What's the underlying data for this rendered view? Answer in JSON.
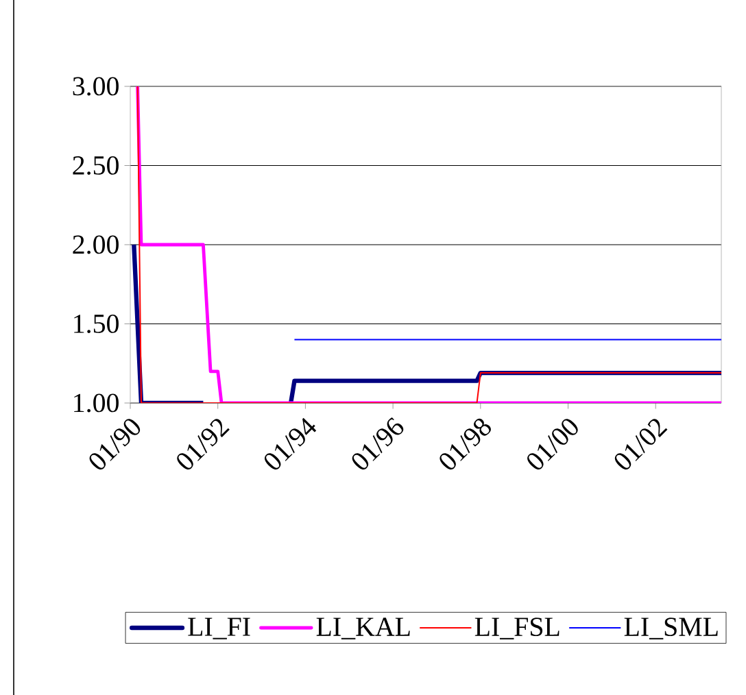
{
  "chart_data": {
    "type": "line",
    "xlim": [
      "1990-01",
      "2003-07"
    ],
    "xticks": [
      {
        "value": "1990-01",
        "label": "01/90"
      },
      {
        "value": "1992-01",
        "label": "01/92"
      },
      {
        "value": "1994-01",
        "label": "01/94"
      },
      {
        "value": "1996-01",
        "label": "01/96"
      },
      {
        "value": "1998-01",
        "label": "01/98"
      },
      {
        "value": "2000-01",
        "label": "01/00"
      },
      {
        "value": "2002-01",
        "label": "01/02"
      }
    ],
    "ylim": [
      1,
      3
    ],
    "yticks": [
      {
        "value": 1,
        "label": "1.00"
      },
      {
        "value": 1.5,
        "label": "1.50"
      },
      {
        "value": 2,
        "label": "2.00"
      },
      {
        "value": 2.5,
        "label": "2.50"
      },
      {
        "value": 3,
        "label": "3.00"
      }
    ],
    "grid": "y",
    "legend": "bottom",
    "marker": "none",
    "line_style": "solid",
    "series": [
      {
        "name": "LI_FI",
        "color": "#000080",
        "x": [
          "1990-02",
          "1990-04",
          "1991-09",
          "1992-06",
          "1993-09",
          "1993-10",
          "1997-12",
          "1998-01",
          "2003-07"
        ],
        "values": [
          2.0,
          1.0,
          1.0,
          null,
          1.0,
          1.14,
          1.14,
          1.19,
          1.19
        ]
      },
      {
        "name": "LI_KAL",
        "color": "#ff00ff",
        "x": [
          "1990-03",
          "1990-04",
          "1991-09",
          "1991-11",
          "1992-01",
          "1992-02",
          "2003-07"
        ],
        "values": [
          3.0,
          2.0,
          2.0,
          1.2,
          1.2,
          1.0,
          1.0
        ]
      },
      {
        "name": "LI_FSL",
        "color": "#ff0000",
        "x": [
          "1990-03",
          "1990-04",
          "1997-12",
          "1998-01",
          "2003-07"
        ],
        "values": [
          3.0,
          1.0,
          1.0,
          1.19,
          1.19
        ]
      },
      {
        "name": "LI_SML",
        "color": "#0000ff",
        "x": [
          "1993-10",
          "2003-07"
        ],
        "values": [
          1.4,
          1.4
        ]
      }
    ]
  }
}
